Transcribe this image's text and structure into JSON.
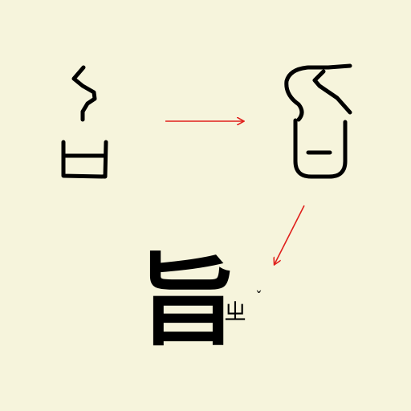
{
  "colors": {
    "background": "#f6f4dc",
    "ink": "#000000",
    "arrow": "#e0201c"
  },
  "glyphs": {
    "ancient_1": {
      "name": "oracle-bone-form"
    },
    "ancient_2": {
      "name": "bronze-form"
    }
  },
  "modern": {
    "character": "旨",
    "bopomofo": "ㄓ",
    "tone": "ˇ"
  }
}
